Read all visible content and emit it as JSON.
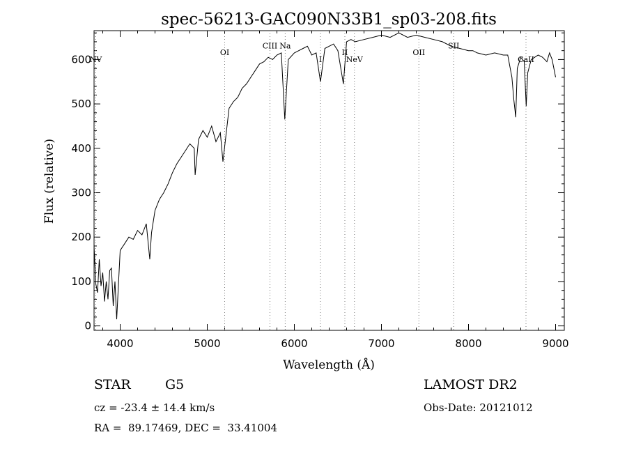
{
  "chart_data": {
    "type": "line",
    "title": "spec-56213-GAC090N33B1_sp03-208.fits",
    "xlabel": "Wavelength (Å)",
    "ylabel": "Flux (relative)",
    "xlim": [
      3700,
      9100
    ],
    "ylim": [
      -10,
      665
    ],
    "xticks": [
      4000,
      5000,
      6000,
      7000,
      8000,
      9000
    ],
    "yticks": [
      0,
      100,
      200,
      300,
      400,
      500,
      600
    ],
    "grid": false,
    "line_color": "#000000",
    "series": [
      {
        "x": [
          3700,
          3720,
          3740,
          3760,
          3780,
          3800,
          3820,
          3840,
          3860,
          3880,
          3900,
          3920,
          3940,
          3960,
          4000,
          4050,
          4100,
          4150,
          4200,
          4250,
          4300,
          4340,
          4360,
          4400,
          4450,
          4500,
          4550,
          4600,
          4650,
          4700,
          4750,
          4800,
          4850,
          4861,
          4900,
          4950,
          5000,
          5050,
          5100,
          5150,
          5180,
          5250,
          5300,
          5350,
          5400,
          5450,
          5500,
          5550,
          5600,
          5650,
          5700,
          5750,
          5800,
          5850,
          5890,
          5930,
          6000,
          6050,
          6100,
          6150,
          6200,
          6250,
          6300,
          6350,
          6400,
          6450,
          6500,
          6563,
          6600,
          6650,
          6700,
          6800,
          6900,
          7000,
          7100,
          7200,
          7300,
          7400,
          7500,
          7600,
          7700,
          7800,
          7900,
          8000,
          8050,
          8100,
          8200,
          8300,
          8400,
          8450,
          8498,
          8520,
          8542,
          8560,
          8600,
          8640,
          8662,
          8680,
          8720,
          8760,
          8800,
          8850,
          8900,
          8930,
          8960,
          8990,
          9000
        ],
        "y": [
          180,
          95,
          75,
          150,
          90,
          120,
          55,
          100,
          60,
          125,
          130,
          45,
          100,
          15,
          170,
          185,
          200,
          195,
          215,
          205,
          230,
          150,
          210,
          260,
          285,
          300,
          320,
          345,
          365,
          380,
          395,
          410,
          400,
          340,
          420,
          440,
          425,
          450,
          415,
          435,
          370,
          490,
          505,
          515,
          535,
          545,
          560,
          575,
          590,
          595,
          605,
          600,
          610,
          615,
          465,
          600,
          615,
          620,
          625,
          630,
          610,
          615,
          550,
          625,
          630,
          635,
          620,
          545,
          640,
          645,
          640,
          645,
          650,
          655,
          650,
          660,
          650,
          655,
          650,
          645,
          640,
          630,
          625,
          620,
          620,
          615,
          610,
          615,
          610,
          610,
          560,
          510,
          470,
          580,
          605,
          595,
          495,
          570,
          600,
          605,
          610,
          605,
          595,
          615,
          600,
          570,
          560
        ]
      }
    ],
    "line_markers": [
      {
        "label": "NV",
        "x": 3720,
        "label_y": 594
      },
      {
        "label": "OI",
        "x": 5200,
        "label_y": 610
      },
      {
        "label": "CIII",
        "x": 5720,
        "label_y": 625
      },
      {
        "label": "Na",
        "x": 5895,
        "label_y": 625
      },
      {
        "label": "I",
        "x": 6300,
        "label_y": 594
      },
      {
        "label": "II",
        "x": 6580,
        "label_y": 610
      },
      {
        "label": "NeV",
        "x": 6690,
        "label_y": 594
      },
      {
        "label": "OII",
        "x": 7430,
        "label_y": 610
      },
      {
        "label": "SII",
        "x": 7830,
        "label_y": 625
      },
      {
        "label": "CaII",
        "x": 8660,
        "label_y": 594
      }
    ]
  },
  "info": {
    "class": "STAR",
    "subclass": "G5",
    "survey": "LAMOST DR2",
    "redshift": "cz = -23.4 ± 14.4 km/s",
    "obs_date": "Obs-Date: 20121012",
    "coords": "RA =  89.17469, DEC =  33.41004"
  }
}
